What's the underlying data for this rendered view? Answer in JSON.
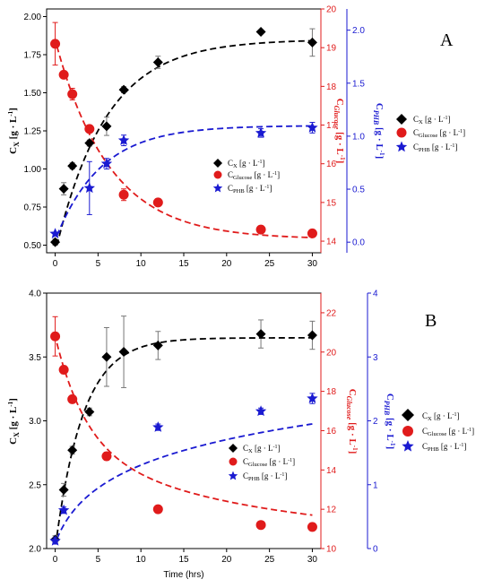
{
  "figure": {
    "colors": {
      "black": "#000000",
      "red": "#e01b1b",
      "blue": "#1a1ad1"
    },
    "panels": [
      {
        "letter": "A",
        "xlabel": "",
        "axis_titles": {
          "left_main": "C",
          "left_sub": "X",
          "left_unit": " [g · L",
          "left_sup": "-1",
          "left_end": "]",
          "right1_main": "C",
          "right1_sub": "Glucose",
          "right1_unit": " [g · L",
          "right1_sup": "-1",
          "right1_end": "]",
          "right2_main": "C",
          "right2_sub": "PHB",
          "right2_unit": " [g · L",
          "right2_sup": "-1",
          "right2_end": "]"
        },
        "outer_legend": [
          {
            "main": "C",
            "sub": "X",
            "unit": " [g · L",
            "sup": "-1",
            "end": "]"
          },
          {
            "main": "C",
            "sub": "Glucose",
            "unit": " [g · L",
            "sup": "-1",
            "end": "]"
          },
          {
            "main": "C",
            "sub": "PHB",
            "unit": " [g · L",
            "sup": "-1",
            "end": "]"
          }
        ],
        "inner_legend": [
          {
            "main": "C",
            "sub": "X",
            "unit": " [g · L",
            "sup": "-1",
            "end": "]"
          },
          {
            "main": "C",
            "sub": "Glucose",
            "unit": " [g · L",
            "sup": "-1",
            "end": "]"
          },
          {
            "main": "C",
            "sub": "PHB",
            "unit": " [g · L",
            "sup": "-1",
            "end": "]"
          }
        ]
      },
      {
        "letter": "B",
        "xlabel": "Time (hrs)",
        "axis_titles": {
          "left_main": "C",
          "left_sub": "X",
          "left_unit": " [g · L",
          "left_sup": "-1",
          "left_end": "]",
          "right1_main": "C",
          "right1_sub": "Glucose",
          "right1_unit": " [g · L",
          "right1_sup": "-1",
          "right1_end": "]",
          "right2_main": "C",
          "right2_sub": "PHB",
          "right2_unit": " [g · L",
          "right2_sup": "-1",
          "right2_end": "]"
        },
        "outer_legend": [
          {
            "main": "C",
            "sub": "X",
            "unit": " [g · L",
            "sup": "-1",
            "end": "]"
          },
          {
            "main": "C",
            "sub": "Glucose",
            "unit": " [g · L",
            "sup": "-1",
            "end": "]"
          },
          {
            "main": "C",
            "sub": "PHB",
            "unit": " [g · L",
            "sup": "-1",
            "end": "]"
          }
        ],
        "inner_legend": [
          {
            "main": "C",
            "sub": "X",
            "unit": " [g · L",
            "sup": "-1",
            "end": "]"
          },
          {
            "main": "C",
            "sub": "Glucose",
            "unit": " [g · L",
            "sup": "-1",
            "end": "]"
          },
          {
            "main": "C",
            "sub": "PHB",
            "unit": " [g · L",
            "sup": "-1",
            "end": "]"
          }
        ]
      }
    ]
  },
  "chart_data": [
    {
      "type": "scatter",
      "panel": "A",
      "xlim": [
        -1,
        31
      ],
      "x_ticks": [
        "0",
        "5",
        "10",
        "15",
        "20",
        "25",
        "30"
      ],
      "y_left": {
        "lim": [
          0.45,
          2.05
        ],
        "ticks": [
          "0.50",
          "0.75",
          "1.00",
          "1.25",
          "1.50",
          "1.75",
          "2.00"
        ]
      },
      "y_right1": {
        "lim": [
          13.7,
          20
        ],
        "ticks": [
          "14",
          "15",
          "16",
          "17",
          "18",
          "19",
          "20"
        ]
      },
      "y_right2": {
        "lim": [
          -0.1,
          2.2
        ],
        "ticks": [
          "0.0",
          "0.5",
          "1.0",
          "1.5",
          "2.0"
        ]
      },
      "series": [
        {
          "axis": "left",
          "marker": "diamond",
          "color": "black",
          "x": [
            0,
            1,
            2,
            4,
            6,
            8,
            12,
            24,
            30
          ],
          "y": [
            0.52,
            0.87,
            1.02,
            1.17,
            1.28,
            1.52,
            1.7,
            1.9,
            1.83
          ],
          "err": [
            0.02,
            0.04,
            0.02,
            0.02,
            0.06,
            0.02,
            0.04,
            0.01,
            0.09
          ],
          "fit": {
            "kind": "sat",
            "a": 0.45,
            "b": 1.4,
            "k": 0.17
          }
        },
        {
          "axis": "right1",
          "marker": "circle",
          "color": "red",
          "x": [
            0,
            1,
            2,
            4,
            8,
            12,
            24,
            30
          ],
          "y": [
            19.1,
            18.3,
            17.8,
            16.9,
            15.2,
            15.0,
            14.3,
            14.2
          ],
          "err": [
            0.55,
            0.05,
            0.15,
            0.05,
            0.15,
            0.05,
            0.02,
            0.02
          ],
          "fit": {
            "kind": "decay",
            "a": 19.2,
            "b": 14.05,
            "k": 0.16
          }
        },
        {
          "axis": "right2",
          "marker": "star",
          "color": "blue",
          "x": [
            0,
            4,
            6,
            8,
            24,
            30
          ],
          "y": [
            0.08,
            0.51,
            0.74,
            0.96,
            1.03,
            1.08
          ],
          "err": [
            0.0,
            0.25,
            0.05,
            0.05,
            0.04,
            0.05
          ],
          "fit": {
            "kind": "sat",
            "a": 0.02,
            "b": 1.08,
            "k": 0.19
          }
        }
      ]
    },
    {
      "type": "scatter",
      "panel": "B",
      "xlim": [
        -1,
        31
      ],
      "x_ticks": [
        "0",
        "5",
        "10",
        "15",
        "20",
        "25",
        "30"
      ],
      "y_left": {
        "lim": [
          2.0,
          4.0
        ],
        "ticks": [
          "2.0",
          "2.5",
          "3.0",
          "3.5",
          "4.0"
        ]
      },
      "y_right1": {
        "lim": [
          10,
          23
        ],
        "ticks": [
          "10",
          "12",
          "14",
          "16",
          "18",
          "20",
          "22"
        ]
      },
      "y_right2": {
        "lim": [
          0,
          4
        ],
        "ticks": [
          "0",
          "1",
          "2",
          "3",
          "4"
        ]
      },
      "series": [
        {
          "axis": "left",
          "marker": "diamond",
          "color": "black",
          "x": [
            0,
            1,
            2,
            4,
            6,
            8,
            12,
            24,
            30
          ],
          "y": [
            2.07,
            2.46,
            2.77,
            3.07,
            3.5,
            3.54,
            3.59,
            3.68,
            3.67
          ],
          "err": [
            0.03,
            0.05,
            0.03,
            0.03,
            0.23,
            0.28,
            0.11,
            0.11,
            0.11
          ],
          "fit": {
            "kind": "sat",
            "a": 2.0,
            "b": 1.65,
            "k": 0.31
          }
        },
        {
          "axis": "right1",
          "marker": "circle",
          "color": "red",
          "x": [
            0,
            1,
            2,
            6,
            12,
            24,
            30
          ],
          "y": [
            20.8,
            19.1,
            17.6,
            14.7,
            12.0,
            11.2,
            11.1
          ],
          "err": [
            1.0,
            0.2,
            0.15,
            0.2,
            0.1,
            0.05,
            0.05
          ],
          "fit": {
            "kind": "decay2",
            "a": 20.8,
            "b": 10.5,
            "k": 0.28,
            "k2": 0.045,
            "w": 0.55
          }
        },
        {
          "axis": "right2",
          "marker": "star",
          "color": "blue",
          "x": [
            0,
            1,
            12,
            24,
            30
          ],
          "y": [
            0.12,
            0.6,
            1.9,
            2.15,
            2.35
          ],
          "err": [
            0.05,
            0.05,
            0.05,
            0.05,
            0.08
          ],
          "fit": {
            "kind": "log",
            "a": 0.08,
            "c": 0.65,
            "d": 0.56
          }
        }
      ]
    }
  ]
}
